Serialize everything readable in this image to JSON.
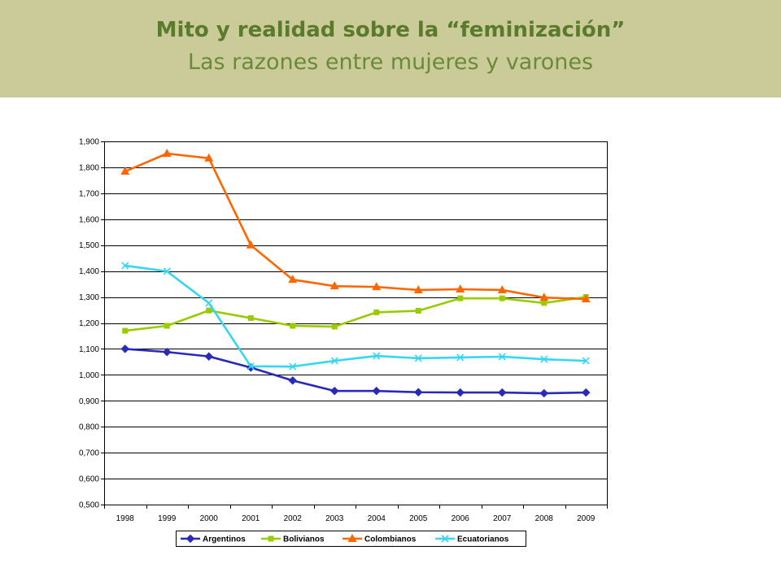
{
  "header": {
    "title": "Mito y realidad sobre la “feminización”",
    "subtitle": "Las razones entre mujeres y varones"
  },
  "colors": {
    "banner": "#cbcb99",
    "title": "#5a7a2c",
    "subtitle": "#6a8a3a"
  },
  "chart_data": {
    "type": "line",
    "categories": [
      "1998",
      "1999",
      "2000",
      "2001",
      "2002",
      "2003",
      "2004",
      "2005",
      "2006",
      "2007",
      "2008",
      "2009"
    ],
    "ylim": [
      0.5,
      1.9
    ],
    "yticks": [
      0.5,
      0.6,
      0.7,
      0.8,
      0.9,
      1.0,
      1.1,
      1.2,
      1.3,
      1.4,
      1.5,
      1.6,
      1.7,
      1.8,
      1.9
    ],
    "yticklabels": [
      "0,500",
      "0,600",
      "0,700",
      "0,800",
      "0,900",
      "1,000",
      "1,100",
      "1,200",
      "1,300",
      "1,400",
      "1,500",
      "1,600",
      "1,700",
      "1,800",
      "1,900"
    ],
    "grid": true,
    "legend": "bottom",
    "series": [
      {
        "name": "Argentinos",
        "color": "#2a2ab8",
        "marker": "diamond",
        "values": [
          1.1,
          1.088,
          1.071,
          1.028,
          0.978,
          0.938,
          0.938,
          0.933,
          0.932,
          0.932,
          0.929,
          0.932
        ]
      },
      {
        "name": "Bolivianos",
        "color": "#99cc00",
        "marker": "square",
        "values": [
          1.17,
          1.189,
          1.248,
          1.219,
          1.189,
          1.186,
          1.241,
          1.247,
          1.295,
          1.295,
          1.277,
          1.3
        ]
      },
      {
        "name": "Colombianos",
        "color": "#ff6600",
        "marker": "triangle",
        "values": [
          1.784,
          1.853,
          1.835,
          1.5,
          1.367,
          1.342,
          1.339,
          1.327,
          1.33,
          1.327,
          1.298,
          1.292
        ]
      },
      {
        "name": "Ecuatorianos",
        "color": "#33d6f5",
        "marker": "x",
        "values": [
          1.421,
          1.399,
          1.277,
          1.033,
          1.032,
          1.054,
          1.073,
          1.064,
          1.067,
          1.07,
          1.06,
          1.054
        ]
      }
    ]
  }
}
